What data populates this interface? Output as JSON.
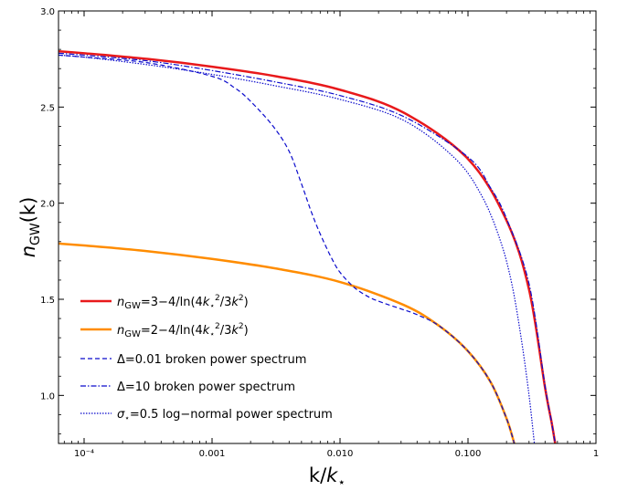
{
  "chart_data": {
    "type": "line",
    "xscale": "log",
    "xlim": [
      6.31e-05,
      1
    ],
    "ylim": [
      0.75,
      3.0
    ],
    "xlabel": "k/k_*",
    "ylabel": "n_GW(k)",
    "grid": false,
    "legend_position": "lower-left",
    "xticks": [
      {
        "value": 0.0001,
        "label": "10⁻⁴"
      },
      {
        "value": 0.001,
        "label": "0.001"
      },
      {
        "value": 0.01,
        "label": "0.010"
      },
      {
        "value": 0.1,
        "label": "0.100"
      },
      {
        "value": 1,
        "label": "1"
      }
    ],
    "yticks": [
      {
        "value": 1.0,
        "label": "1.0"
      },
      {
        "value": 1.5,
        "label": "1.5"
      },
      {
        "value": 2.0,
        "label": "2.0"
      },
      {
        "value": 2.5,
        "label": "2.5"
      },
      {
        "value": 3.0,
        "label": "3.0"
      }
    ],
    "series": [
      {
        "key": "s1",
        "name": "n_GW=3−4/ln(4k_*^2/3k^2)",
        "color": "#e8191b",
        "style": "solid",
        "x": [
          6.31e-05,
          0.0001,
          0.000316,
          0.001,
          0.00316,
          0.01,
          0.0316,
          0.1,
          0.2,
          0.3,
          0.4,
          0.45,
          0.48
        ],
        "y": [
          2.79,
          2.78,
          2.75,
          2.71,
          2.66,
          2.59,
          2.47,
          2.23,
          1.91,
          1.55,
          1.04,
          0.86,
          0.75
        ]
      },
      {
        "key": "s2",
        "name": "n_GW=2−4/ln(4k_*^2/3k^2)",
        "color": "#ff8c00",
        "style": "solid",
        "x": [
          6.31e-05,
          0.0001,
          0.000316,
          0.001,
          0.00316,
          0.01,
          0.0316,
          0.06,
          0.1,
          0.15,
          0.2,
          0.23
        ],
        "y": [
          1.79,
          1.78,
          1.75,
          1.71,
          1.66,
          1.59,
          1.47,
          1.36,
          1.23,
          1.07,
          0.88,
          0.75
        ]
      },
      {
        "key": "s3",
        "name": "Δ=0.01 broken power spectrum",
        "color": "#0b0bcc",
        "style": "dashed",
        "x": [
          6.31e-05,
          0.0001,
          0.000316,
          0.001,
          0.0015,
          0.002,
          0.003,
          0.004,
          0.005,
          0.006,
          0.007,
          0.0085,
          0.01,
          0.013,
          0.017,
          0.022,
          0.03,
          0.04,
          0.06,
          0.1,
          0.15,
          0.2,
          0.23
        ],
        "y": [
          2.77,
          2.76,
          2.73,
          2.66,
          2.6,
          2.53,
          2.4,
          2.27,
          2.1,
          1.95,
          1.84,
          1.72,
          1.64,
          1.56,
          1.51,
          1.48,
          1.45,
          1.42,
          1.36,
          1.23,
          1.07,
          0.88,
          0.75
        ]
      },
      {
        "key": "s4",
        "name": "Δ=10 broken power spectrum",
        "color": "#0b0bcc",
        "style": "dashdot",
        "x": [
          6.31e-05,
          0.0001,
          0.000316,
          0.001,
          0.00316,
          0.01,
          0.0316,
          0.1,
          0.15,
          0.2,
          0.3,
          0.4,
          0.45,
          0.48
        ],
        "y": [
          2.78,
          2.77,
          2.74,
          2.69,
          2.63,
          2.56,
          2.45,
          2.24,
          2.08,
          1.92,
          1.58,
          1.05,
          0.86,
          0.75
        ]
      },
      {
        "key": "s5",
        "name": "σ_*=0.5 log−normal power spectrum",
        "color": "#0b0bcc",
        "style": "dotted",
        "x": [
          6.31e-05,
          0.0001,
          0.000316,
          0.001,
          0.00316,
          0.01,
          0.0316,
          0.08,
          0.13,
          0.18,
          0.22,
          0.26,
          0.3,
          0.33
        ],
        "y": [
          2.77,
          2.76,
          2.72,
          2.67,
          2.61,
          2.54,
          2.43,
          2.23,
          2.03,
          1.8,
          1.58,
          1.3,
          1.0,
          0.75
        ]
      }
    ]
  }
}
